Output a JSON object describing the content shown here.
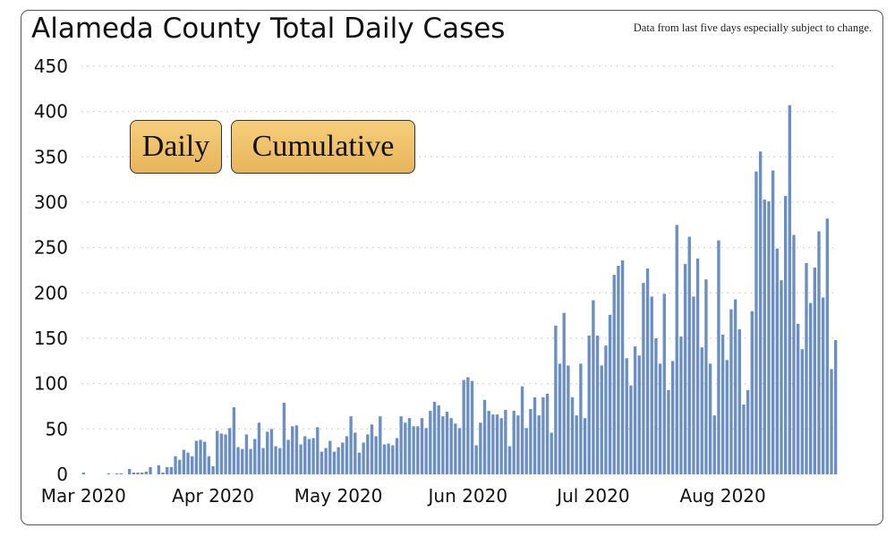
{
  "header": {
    "title": "Alameda County Total Daily Cases",
    "note": "Data from last five days especially subject to change."
  },
  "toggles": {
    "daily_label": "Daily",
    "cumulative_label": "Cumulative"
  },
  "colors": {
    "bar": "#6b8fc4",
    "button": "#f0c16a",
    "grid": "#c8c8c8"
  },
  "chart_data": {
    "type": "bar",
    "title": "Alameda County Total Daily Cases",
    "xlabel": "",
    "ylabel": "",
    "ylim": [
      0,
      450
    ],
    "yticks": [
      0,
      50,
      100,
      150,
      200,
      250,
      300,
      350,
      400,
      450
    ],
    "grid": true,
    "start_date": "2020-03-01",
    "end_date": "2020-08-26",
    "x_ticks": [
      {
        "label": "Mar 2020",
        "date": "2020-03-01"
      },
      {
        "label": "Apr 2020",
        "date": "2020-04-01"
      },
      {
        "label": "May 2020",
        "date": "2020-05-01"
      },
      {
        "label": "Jun 2020",
        "date": "2020-06-01"
      },
      {
        "label": "Jul 2020",
        "date": "2020-07-01"
      },
      {
        "label": "Aug 2020",
        "date": "2020-08-01"
      }
    ],
    "values": [
      2,
      0,
      0,
      0,
      0,
      0,
      1,
      0,
      1,
      1,
      0,
      6,
      2,
      2,
      2,
      3,
      8,
      0,
      10,
      2,
      8,
      8,
      20,
      16,
      27,
      24,
      20,
      37,
      38,
      36,
      20,
      9,
      48,
      45,
      44,
      51,
      74,
      30,
      28,
      44,
      28,
      39,
      57,
      29,
      47,
      50,
      31,
      29,
      79,
      38,
      53,
      54,
      33,
      42,
      39,
      40,
      52,
      25,
      29,
      37,
      25,
      30,
      35,
      42,
      64,
      46,
      24,
      35,
      44,
      55,
      42,
      64,
      33,
      34,
      32,
      40,
      64,
      57,
      62,
      53,
      53,
      62,
      51,
      70,
      80,
      76,
      64,
      69,
      62,
      56,
      51,
      104,
      107,
      103,
      32,
      57,
      82,
      70,
      66,
      66,
      62,
      71,
      31,
      70,
      65,
      97,
      51,
      72,
      85,
      65,
      85,
      89,
      46,
      164,
      122,
      178,
      120,
      85,
      65,
      122,
      62,
      153,
      192,
      153,
      120,
      142,
      176,
      220,
      230,
      236,
      128,
      98,
      141,
      131,
      211,
      227,
      196,
      150,
      122,
      199,
      93,
      125,
      275,
      152,
      232,
      262,
      196,
      238,
      140,
      215,
      122,
      65,
      258,
      154,
      126,
      182,
      193,
      160,
      77,
      93,
      180,
      334,
      356,
      303,
      301,
      335,
      249,
      214,
      307,
      407,
      264,
      166,
      138,
      233,
      189,
      228,
      268,
      195,
      282,
      116,
      148
    ]
  }
}
